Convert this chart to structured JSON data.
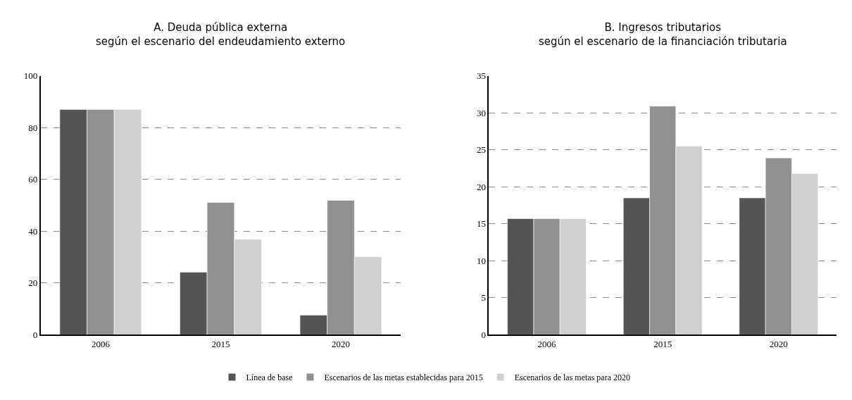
{
  "chart_data": [
    {
      "type": "bar",
      "title": "A. Deuda pública externa\nsegún el escenario del endeudamiento externo",
      "categories": [
        "2006",
        "2015",
        "2020"
      ],
      "series": [
        {
          "name": "Línea de base",
          "color": "#545454",
          "values": [
            87.0,
            24.2,
            7.6
          ]
        },
        {
          "name": "Escenarios de las metas establecidas para 2015",
          "color": "#919191",
          "values": [
            87.0,
            51.1,
            51.9
          ]
        },
        {
          "name": "Escenarios de las metas para 2020",
          "color": "#d0d0d0",
          "values": [
            87.0,
            36.9,
            30.1
          ]
        }
      ],
      "ylim": [
        0,
        100
      ],
      "yticks": [
        0,
        20,
        40,
        60,
        80,
        100
      ],
      "grid": "y",
      "legend": "bottom"
    },
    {
      "type": "bar",
      "title": "B. Ingresos tributarios\nsegún el escenario de la financiación tributaria",
      "categories": [
        "2006",
        "2015",
        "2020"
      ],
      "series": [
        {
          "color": "#545454",
          "values": [
            15.7,
            18.5,
            18.5
          ]
        },
        {
          "color": "#919191",
          "values": [
            15.7,
            30.9,
            23.9
          ]
        },
        {
          "color": "#d0d0d0",
          "values": [
            15.7,
            25.5,
            21.8
          ]
        }
      ],
      "ylim": [
        0,
        35
      ],
      "yticks": [
        0,
        5,
        10,
        15,
        20,
        25,
        30,
        35
      ],
      "grid": "y"
    }
  ]
}
